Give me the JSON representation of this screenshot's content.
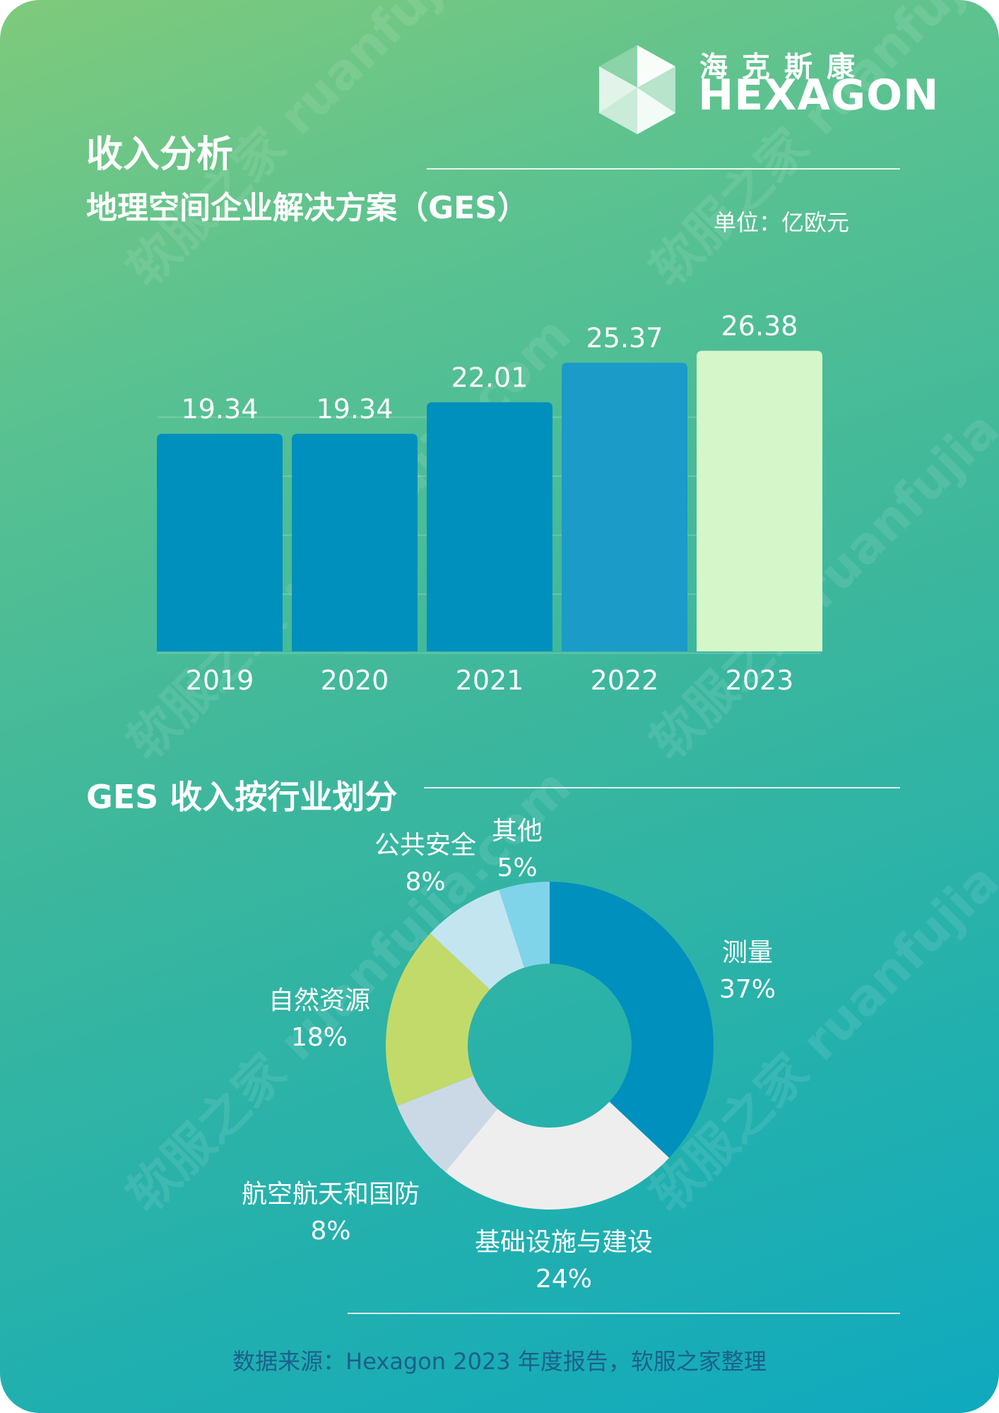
{
  "header": {
    "title": "收入分析",
    "subtitle": "地理空间企业解决方案（GES）",
    "unit": "单位：亿欧元"
  },
  "logo": {
    "cn": "海克斯康",
    "en": "HEXAGON"
  },
  "watermark": "软服之家 ruanfujia.com",
  "section2_title": "GES 收入按行业划分",
  "source": "数据来源：Hexagon 2023 年度报告，软服之家整理",
  "colors": {
    "bar": "#0090bd",
    "bar_2022": "#1a9bc8",
    "bar_highlight": "#d5f6c8",
    "label": "#ffffff"
  },
  "chart_data": [
    {
      "type": "bar",
      "categories": [
        "2019",
        "2020",
        "2021",
        "2022",
        "2023"
      ],
      "values": [
        19.34,
        19.34,
        22.01,
        25.37,
        26.38
      ],
      "title": "地理空间企业解决方案（GES）",
      "unit": "单位：亿欧元",
      "ylim": [
        0,
        30
      ],
      "grid": true
    },
    {
      "type": "pie",
      "style": "donut",
      "title": "GES 收入按行业划分",
      "slices": [
        {
          "label": "测量",
          "value": 37,
          "pct": "37%",
          "color": "#0090bd"
        },
        {
          "label": "基础设施与建设",
          "value": 24,
          "pct": "24%",
          "color": "#eeeeee"
        },
        {
          "label": "航空航天和国防",
          "value": 8,
          "pct": "8%",
          "color": "#cbd9e6"
        },
        {
          "label": "自然资源",
          "value": 18,
          "pct": "18%",
          "color": "#c2da6a"
        },
        {
          "label": "公共安全",
          "value": 8,
          "pct": "8%",
          "color": "#c3e5ef"
        },
        {
          "label": "其他",
          "value": 5,
          "pct": "5%",
          "color": "#7fd4ea"
        }
      ]
    }
  ]
}
